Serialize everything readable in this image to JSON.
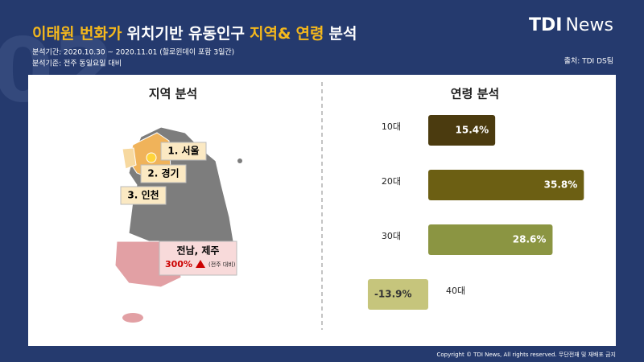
{
  "header": {
    "watermark": "02",
    "title": [
      {
        "text": "이태원 번화가",
        "highlight": true
      },
      {
        "text": "위치기반 유동인구",
        "highlight": false
      },
      {
        "text": "지역&",
        "highlight": true
      },
      {
        "text": "연령",
        "highlight": true
      },
      {
        "text": "분석",
        "highlight": false
      }
    ],
    "brand": [
      "TDI",
      "News"
    ],
    "period": "분석기간: 2020.10.30 ~ 2020.11.01 (할로윈데이 포함 3일간)",
    "basis": "분석기준: 전주 동일요일 대비",
    "source": "출처: TDI DS팀"
  },
  "region": {
    "title": "지역 분석",
    "labels": [
      "1. 서울",
      "2. 경기",
      "3. 인천"
    ],
    "highlight": {
      "name": "전남, 제주",
      "value": "300%",
      "note": "(전주 대비)"
    }
  },
  "chart_data": {
    "type": "bar",
    "orientation": "horizontal",
    "title": "연령 분석",
    "categories": [
      "10대",
      "20대",
      "30대",
      "40대"
    ],
    "values": [
      15.4,
      35.8,
      28.6,
      -13.9
    ],
    "value_labels": [
      "15.4%",
      "35.8%",
      "28.6%",
      "-13.9%"
    ],
    "colors": [
      "#4b3b0f",
      "#6c5f13",
      "#8b9542",
      "#c6c57c"
    ]
  },
  "footer": {
    "copyright": "Copyright © TDI News, All rights reserved. 무단전재 및 재배포 금지"
  }
}
